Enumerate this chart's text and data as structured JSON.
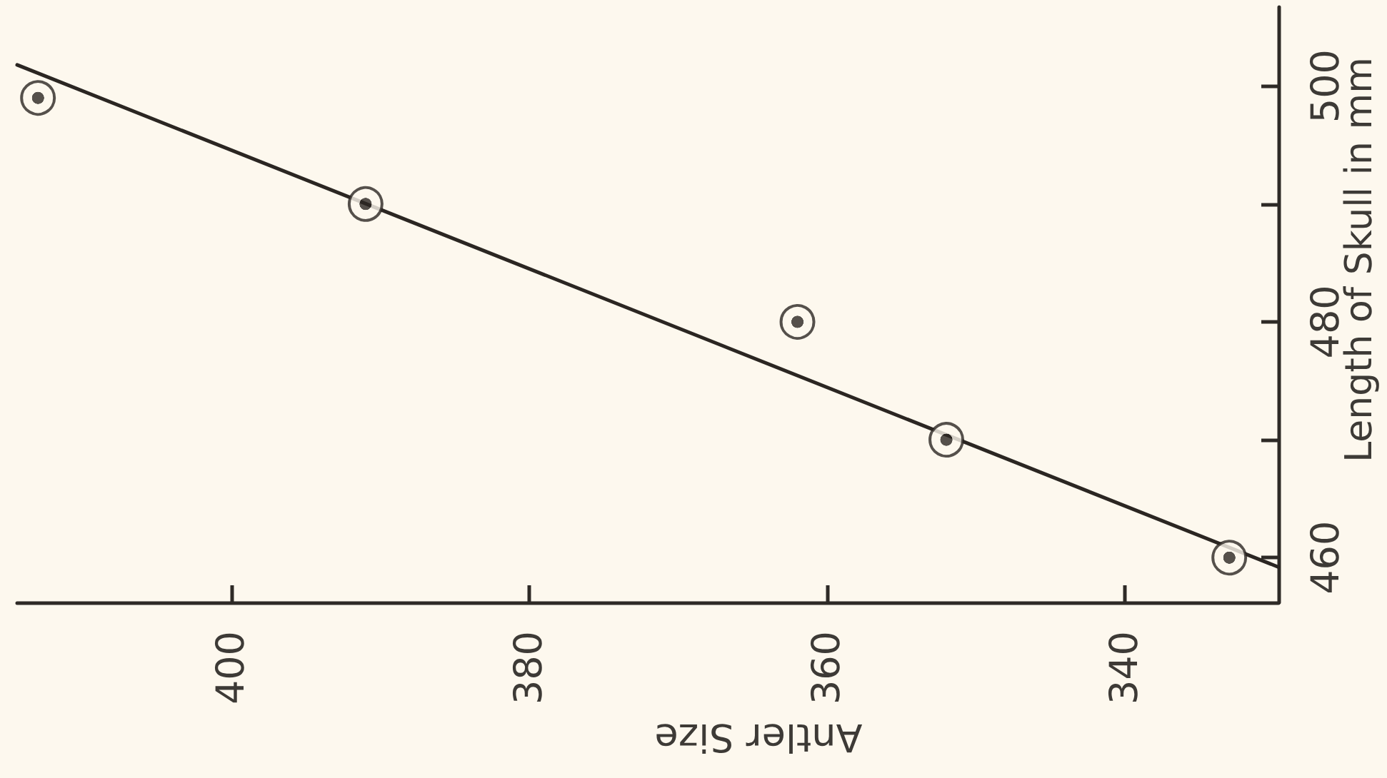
{
  "chart_data": {
    "type": "scatter",
    "xlabel": "Antler Size",
    "ylabel": "Length of Skull in mm",
    "xlim": [
      414.4,
      329.7
    ],
    "ylim": [
      456.2,
      506.7
    ],
    "xticks": [
      400,
      380,
      360,
      340
    ],
    "yticks": [
      460,
      {
        "value": 470,
        "label": null
      },
      480,
      {
        "value": 490,
        "label": null
      },
      500
    ],
    "marker": "circle",
    "series": [
      {
        "color": "#2b2622",
        "x": [
          413,
          391,
          362,
          352,
          333
        ],
        "values": [
          499,
          490,
          480,
          470,
          460
        ]
      },
      {
        "type": "line",
        "color": "#2b2622",
        "marker": "none",
        "line_style": "solid",
        "x": [
          414.4,
          329.7
        ],
        "values": [
          501.8,
          459.2
        ]
      }
    ]
  }
}
